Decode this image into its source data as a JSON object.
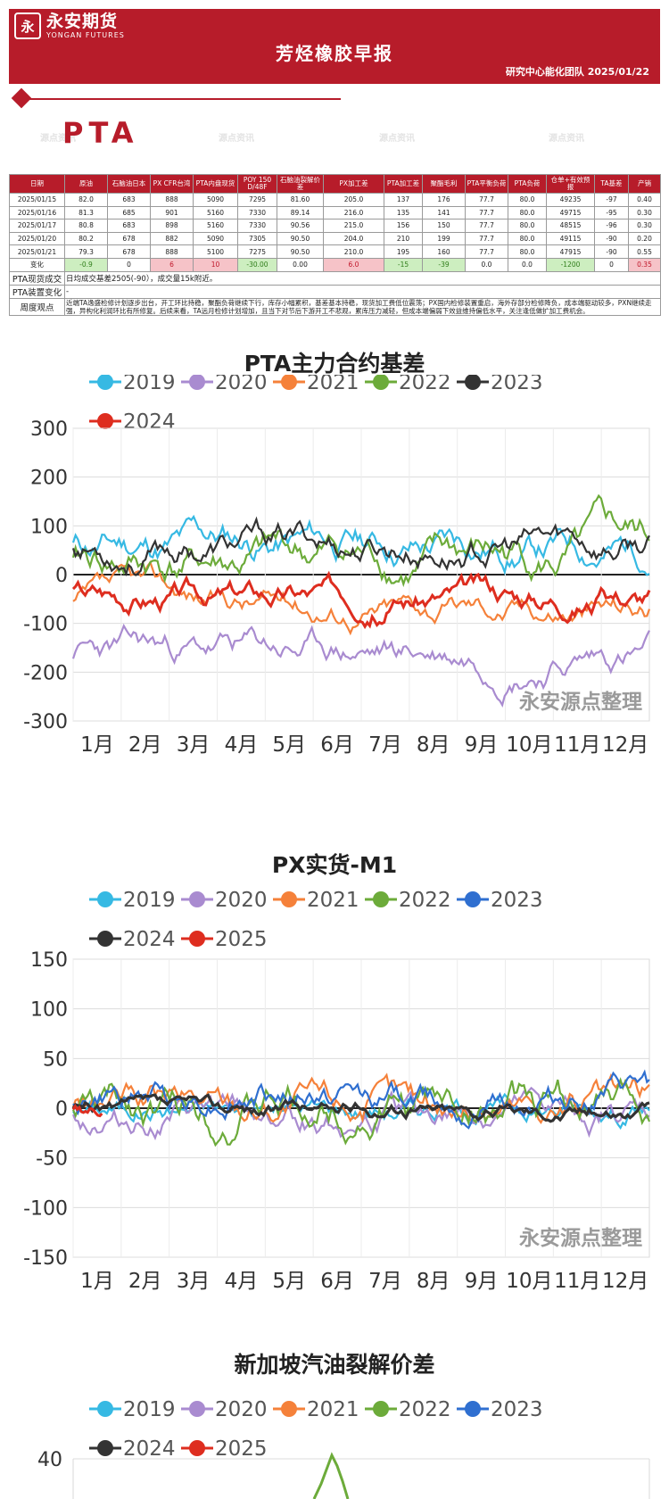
{
  "header": {
    "logo_mark": "永",
    "logo_cn": "永安期货",
    "logo_en": "YONGAN FUTURES",
    "title": "芳烃橡胶早报",
    "subtitle": "研究中心能化团队  2025/01/22"
  },
  "section": {
    "title": "PTA",
    "watermark": "源点资讯"
  },
  "table": {
    "headers": [
      "日期",
      "原油",
      "石脑油日本",
      "PX CFR台湾",
      "PTA内盘现货",
      "POY 150 D/48F",
      "石脑油裂解价差",
      "PX加工差",
      "PTA加工差",
      "聚酯毛利",
      "PTA平衡负荷",
      "PTA负荷",
      "仓单+有效预报",
      "TA基差",
      "产销"
    ],
    "rows": [
      [
        "2025/01/15",
        "82.0",
        "683",
        "888",
        "5090",
        "7295",
        "81.60",
        "205.0",
        "137",
        "176",
        "77.7",
        "80.0",
        "49235",
        "-97",
        "0.40"
      ],
      [
        "2025/01/16",
        "81.3",
        "685",
        "901",
        "5160",
        "7330",
        "89.14",
        "216.0",
        "135",
        "141",
        "77.7",
        "80.0",
        "49715",
        "-95",
        "0.30"
      ],
      [
        "2025/01/17",
        "80.8",
        "683",
        "898",
        "5160",
        "7330",
        "90.56",
        "215.0",
        "156",
        "150",
        "77.7",
        "80.0",
        "48515",
        "-96",
        "0.30"
      ],
      [
        "2025/01/20",
        "80.2",
        "678",
        "882",
        "5090",
        "7305",
        "90.50",
        "204.0",
        "210",
        "199",
        "77.7",
        "80.0",
        "49115",
        "-90",
        "0.20"
      ],
      [
        "2025/01/21",
        "79.3",
        "678",
        "888",
        "5100",
        "7275",
        "90.50",
        "210.0",
        "195",
        "160",
        "77.7",
        "80.0",
        "47915",
        "-90",
        "0.55"
      ]
    ],
    "change_label": "变化",
    "change_row": [
      "-0.9",
      "0",
      "6",
      "10",
      "-30.00",
      "0.00",
      "6.0",
      "-15",
      "-39",
      "0.0",
      "0.0",
      "-1200",
      "0",
      "0.35"
    ],
    "change_classes": [
      "neg",
      "",
      "pos",
      "pos",
      "neg",
      "",
      "pos",
      "neg",
      "neg",
      "",
      "",
      "neg",
      "",
      "pos"
    ],
    "spot_label": "PTA现货成交",
    "spot_text": "日均成交基差2505(-90），成交量15k附近。",
    "device_label": "PTA装置变化",
    "device_text": "-",
    "view_label": "周度观点",
    "view_text": "近端TA逸盛检修计划逐步出台，开工环比持稳，聚酯负荷继续下行，库存小幅累积，基差基本持稳，现货加工费低位震荡；PX国内检修装置重启，海外存部分检修降负，成本端驱动较多，PXN继续走强，异构化利润环比有所修复。后续来看，TA远月检修计划增加，且当下对节后下游开工不悲观，累库压力减轻，但成本端偏弱下效益维持偏低水平，关注逢低做扩加工费机会。"
  },
  "charts": [
    {
      "id": "pta-basis",
      "title": "PTA主力合约基差",
      "watermark": "永安源点整理",
      "months": [
        "1月",
        "2月",
        "3月",
        "4月",
        "5月",
        "6月",
        "7月",
        "8月",
        "9月",
        "10月",
        "11月",
        "12月"
      ],
      "yticks": [
        "300",
        "200",
        "100",
        "0",
        "-100",
        "-200",
        "-300"
      ],
      "legend": [
        {
          "name": "2019",
          "color": "#36b9e3"
        },
        {
          "name": "2020",
          "color": "#a98bd0"
        },
        {
          "name": "2021",
          "color": "#f5813a"
        },
        {
          "name": "2022",
          "color": "#6cab3a"
        },
        {
          "name": "2023",
          "color": "#333333"
        },
        {
          "name": "2024",
          "color": "#de2d1f"
        }
      ]
    },
    {
      "id": "px-m1",
      "title": "PX实货-M1",
      "watermark": "永安源点整理",
      "months": [
        "1月",
        "2月",
        "3月",
        "4月",
        "5月",
        "6月",
        "7月",
        "8月",
        "9月",
        "10月",
        "11月",
        "12月"
      ],
      "yticks": [
        "150",
        "100",
        "50",
        "0",
        "-50",
        "-100",
        "-150"
      ],
      "legend": [
        {
          "name": "2019",
          "color": "#36b9e3"
        },
        {
          "name": "2020",
          "color": "#a98bd0"
        },
        {
          "name": "2021",
          "color": "#f5813a"
        },
        {
          "name": "2022",
          "color": "#6cab3a"
        },
        {
          "name": "2023",
          "color": "#2f6fd0"
        },
        {
          "name": "2024",
          "color": "#333333"
        },
        {
          "name": "2025",
          "color": "#de2d1f"
        }
      ]
    },
    {
      "id": "sg-gasoline",
      "title": "新加坡汽油裂解价差",
      "months": [],
      "yticks": [
        "40"
      ],
      "legend": [
        {
          "name": "2019",
          "color": "#36b9e3"
        },
        {
          "name": "2020",
          "color": "#a98bd0"
        },
        {
          "name": "2021",
          "color": "#f5813a"
        },
        {
          "name": "2022",
          "color": "#6cab3a"
        },
        {
          "name": "2023",
          "color": "#2f6fd0"
        },
        {
          "name": "2024",
          "color": "#333333"
        },
        {
          "name": "2025",
          "color": "#de2d1f"
        }
      ]
    }
  ]
}
